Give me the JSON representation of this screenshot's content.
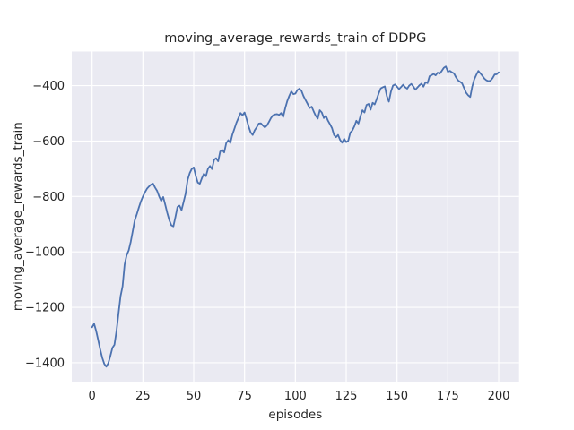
{
  "figure": {
    "background": "#ffffff"
  },
  "chart_data": {
    "type": "line",
    "title": "moving_average_rewards_train of DDPG",
    "xlabel": "episodes",
    "ylabel": "moving_average_rewards_train",
    "legend": "none",
    "grid": true,
    "plot_background": "#EAEAF2",
    "grid_color": "#FFFFFF",
    "text_color": "#262626",
    "xlim": [
      -10,
      210
    ],
    "ylim": [
      -1468,
      -277
    ],
    "xticks": {
      "values": [
        0,
        25,
        50,
        75,
        100,
        125,
        150,
        175,
        200
      ],
      "labels": [
        "0",
        "25",
        "50",
        "75",
        "100",
        "125",
        "150",
        "175",
        "200"
      ]
    },
    "yticks": {
      "values": [
        -400,
        -600,
        -800,
        -1000,
        -1200,
        -1400
      ],
      "labels": [
        "−400",
        "−600",
        "−800",
        "−1000",
        "−1200",
        "−1400"
      ]
    },
    "series": [
      {
        "name": "moving_average_rewards_train",
        "color": "#4C72B0",
        "line_width": 1.8,
        "points": [
          [
            0,
            -1272
          ],
          [
            1,
            -1259
          ],
          [
            2,
            -1285
          ],
          [
            3,
            -1318
          ],
          [
            4,
            -1352
          ],
          [
            5,
            -1382
          ],
          [
            6,
            -1404
          ],
          [
            7,
            -1414
          ],
          [
            8,
            -1401
          ],
          [
            9,
            -1375
          ],
          [
            10,
            -1346
          ],
          [
            11,
            -1335
          ],
          [
            12,
            -1286
          ],
          [
            13,
            -1222
          ],
          [
            14,
            -1160
          ],
          [
            15,
            -1124
          ],
          [
            16,
            -1046
          ],
          [
            17,
            -1012
          ],
          [
            18,
            -995
          ],
          [
            19,
            -964
          ],
          [
            20,
            -925
          ],
          [
            21,
            -886
          ],
          [
            22,
            -864
          ],
          [
            23,
            -840
          ],
          [
            24,
            -818
          ],
          [
            25,
            -800
          ],
          [
            26,
            -785
          ],
          [
            27,
            -772
          ],
          [
            28,
            -764
          ],
          [
            29,
            -757
          ],
          [
            30,
            -754
          ],
          [
            31,
            -768
          ],
          [
            32,
            -780
          ],
          [
            33,
            -800
          ],
          [
            34,
            -816
          ],
          [
            35,
            -802
          ],
          [
            36,
            -830
          ],
          [
            37,
            -860
          ],
          [
            38,
            -886
          ],
          [
            39,
            -904
          ],
          [
            40,
            -908
          ],
          [
            41,
            -874
          ],
          [
            42,
            -838
          ],
          [
            43,
            -833
          ],
          [
            44,
            -849
          ],
          [
            45,
            -820
          ],
          [
            46,
            -790
          ],
          [
            47,
            -740
          ],
          [
            48,
            -716
          ],
          [
            49,
            -701
          ],
          [
            50,
            -695
          ],
          [
            51,
            -726
          ],
          [
            52,
            -750
          ],
          [
            53,
            -754
          ],
          [
            54,
            -734
          ],
          [
            55,
            -718
          ],
          [
            56,
            -727
          ],
          [
            57,
            -700
          ],
          [
            58,
            -690
          ],
          [
            59,
            -701
          ],
          [
            60,
            -668
          ],
          [
            61,
            -662
          ],
          [
            62,
            -673
          ],
          [
            63,
            -638
          ],
          [
            64,
            -632
          ],
          [
            65,
            -641
          ],
          [
            66,
            -607
          ],
          [
            67,
            -597
          ],
          [
            68,
            -607
          ],
          [
            69,
            -577
          ],
          [
            70,
            -556
          ],
          [
            71,
            -534
          ],
          [
            72,
            -517
          ],
          [
            73,
            -499
          ],
          [
            74,
            -507
          ],
          [
            75,
            -497
          ],
          [
            76,
            -521
          ],
          [
            77,
            -548
          ],
          [
            78,
            -569
          ],
          [
            79,
            -578
          ],
          [
            80,
            -561
          ],
          [
            81,
            -550
          ],
          [
            82,
            -537
          ],
          [
            83,
            -536
          ],
          [
            84,
            -544
          ],
          [
            85,
            -551
          ],
          [
            86,
            -544
          ],
          [
            87,
            -531
          ],
          [
            88,
            -517
          ],
          [
            89,
            -507
          ],
          [
            90,
            -504
          ],
          [
            91,
            -503
          ],
          [
            92,
            -506
          ],
          [
            93,
            -499
          ],
          [
            94,
            -513
          ],
          [
            95,
            -482
          ],
          [
            96,
            -456
          ],
          [
            97,
            -437
          ],
          [
            98,
            -421
          ],
          [
            99,
            -431
          ],
          [
            100,
            -429
          ],
          [
            101,
            -416
          ],
          [
            102,
            -411
          ],
          [
            103,
            -419
          ],
          [
            104,
            -438
          ],
          [
            105,
            -452
          ],
          [
            106,
            -466
          ],
          [
            107,
            -481
          ],
          [
            108,
            -476
          ],
          [
            109,
            -493
          ],
          [
            110,
            -509
          ],
          [
            111,
            -519
          ],
          [
            112,
            -489
          ],
          [
            113,
            -497
          ],
          [
            114,
            -517
          ],
          [
            115,
            -509
          ],
          [
            116,
            -526
          ],
          [
            117,
            -539
          ],
          [
            118,
            -553
          ],
          [
            119,
            -578
          ],
          [
            120,
            -586
          ],
          [
            121,
            -578
          ],
          [
            122,
            -596
          ],
          [
            123,
            -606
          ],
          [
            124,
            -592
          ],
          [
            125,
            -604
          ],
          [
            126,
            -599
          ],
          [
            127,
            -570
          ],
          [
            128,
            -562
          ],
          [
            129,
            -547
          ],
          [
            130,
            -527
          ],
          [
            131,
            -537
          ],
          [
            132,
            -511
          ],
          [
            133,
            -489
          ],
          [
            134,
            -497
          ],
          [
            135,
            -470
          ],
          [
            136,
            -466
          ],
          [
            137,
            -487
          ],
          [
            138,
            -462
          ],
          [
            139,
            -468
          ],
          [
            140,
            -449
          ],
          [
            141,
            -428
          ],
          [
            142,
            -410
          ],
          [
            143,
            -406
          ],
          [
            144,
            -403
          ],
          [
            145,
            -438
          ],
          [
            146,
            -458
          ],
          [
            147,
            -422
          ],
          [
            148,
            -400
          ],
          [
            149,
            -396
          ],
          [
            150,
            -404
          ],
          [
            151,
            -413
          ],
          [
            152,
            -405
          ],
          [
            153,
            -397
          ],
          [
            154,
            -406
          ],
          [
            155,
            -411
          ],
          [
            156,
            -400
          ],
          [
            157,
            -394
          ],
          [
            158,
            -403
          ],
          [
            159,
            -415
          ],
          [
            160,
            -407
          ],
          [
            161,
            -399
          ],
          [
            162,
            -393
          ],
          [
            163,
            -404
          ],
          [
            164,
            -388
          ],
          [
            165,
            -391
          ],
          [
            166,
            -366
          ],
          [
            167,
            -362
          ],
          [
            168,
            -358
          ],
          [
            169,
            -363
          ],
          [
            170,
            -353
          ],
          [
            171,
            -357
          ],
          [
            172,
            -347
          ],
          [
            173,
            -336
          ],
          [
            174,
            -331
          ],
          [
            175,
            -350
          ],
          [
            176,
            -347
          ],
          [
            177,
            -352
          ],
          [
            178,
            -356
          ],
          [
            179,
            -370
          ],
          [
            180,
            -381
          ],
          [
            181,
            -386
          ],
          [
            182,
            -392
          ],
          [
            183,
            -409
          ],
          [
            184,
            -426
          ],
          [
            185,
            -435
          ],
          [
            186,
            -441
          ],
          [
            187,
            -403
          ],
          [
            188,
            -377
          ],
          [
            189,
            -361
          ],
          [
            190,
            -347
          ],
          [
            191,
            -356
          ],
          [
            192,
            -365
          ],
          [
            193,
            -375
          ],
          [
            194,
            -381
          ],
          [
            195,
            -384
          ],
          [
            196,
            -382
          ],
          [
            197,
            -373
          ],
          [
            198,
            -360
          ],
          [
            199,
            -359
          ],
          [
            200,
            -352
          ]
        ]
      }
    ]
  }
}
